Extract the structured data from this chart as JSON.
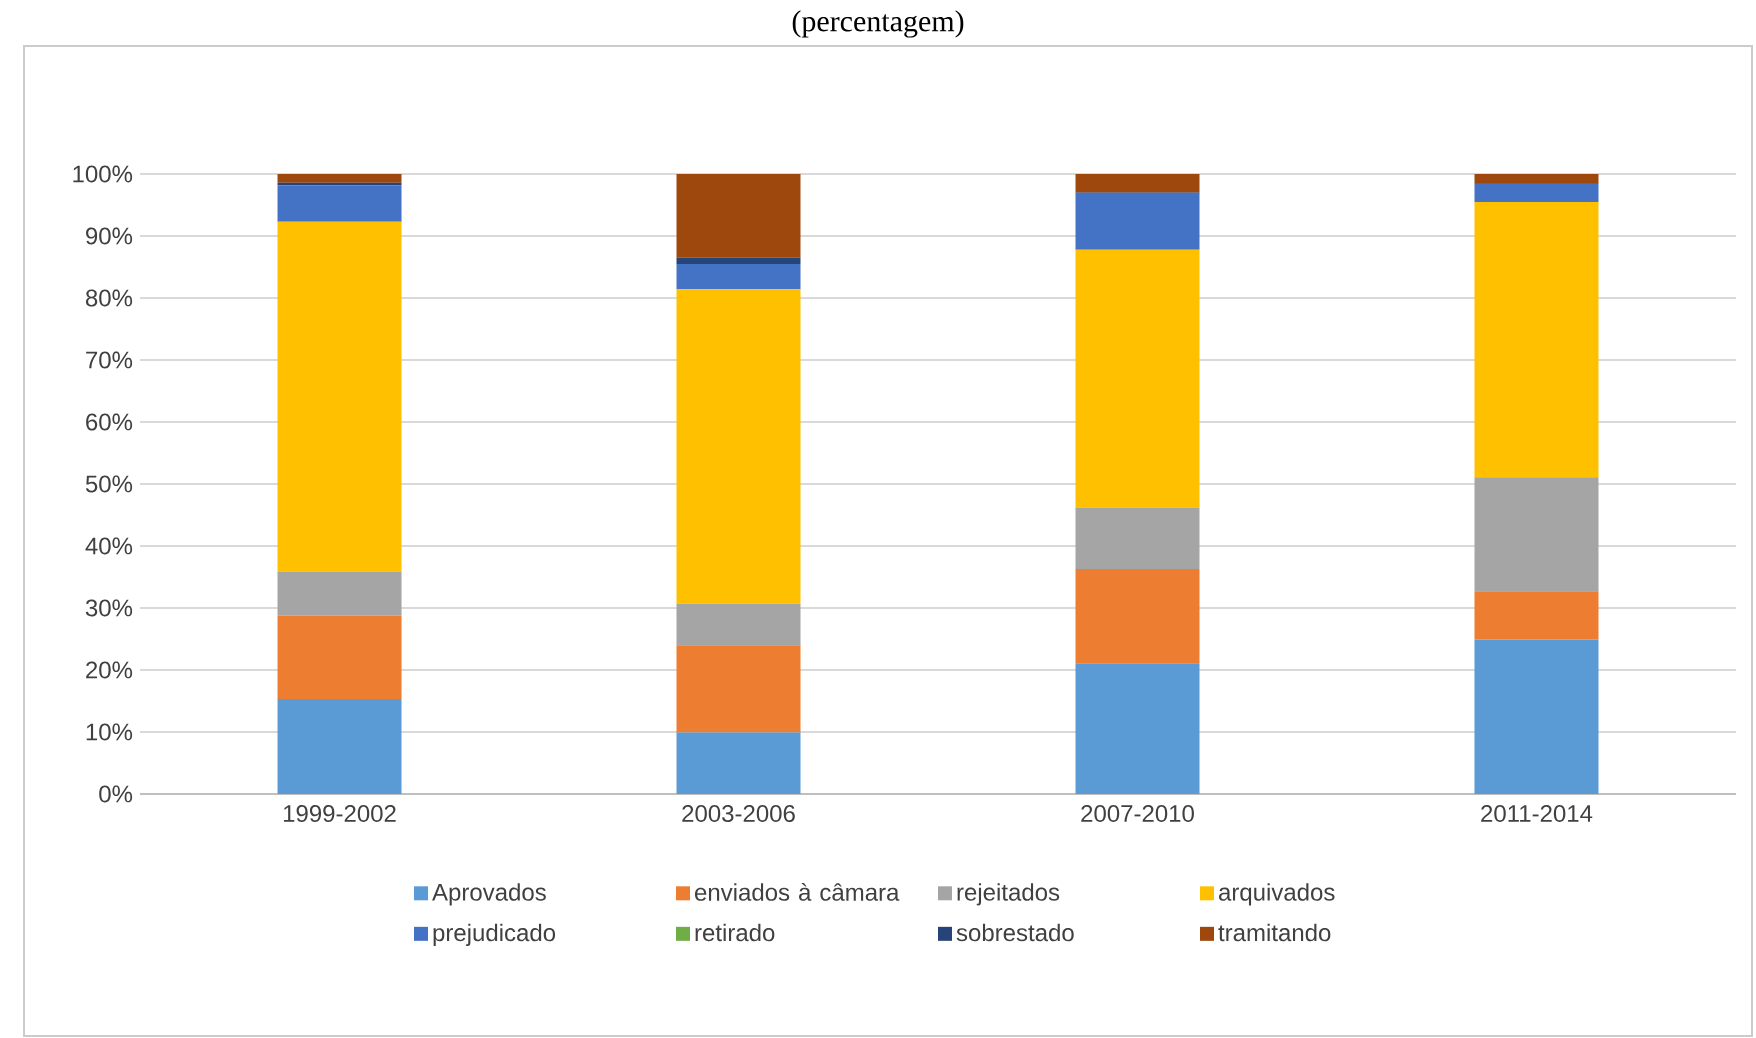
{
  "chart_data": {
    "type": "bar",
    "title": "(percentagem)",
    "stacked": true,
    "categories": [
      "1999-2002",
      "2003-2006",
      "2007-2010",
      "2011-2014"
    ],
    "ylim": [
      0,
      100
    ],
    "yticks": [
      {
        "value": 0,
        "label": "0%"
      },
      {
        "value": 10,
        "label": "10%"
      },
      {
        "value": 20,
        "label": "20%"
      },
      {
        "value": 30,
        "label": "30%"
      },
      {
        "value": 40,
        "label": "40%"
      },
      {
        "value": 50,
        "label": "50%"
      },
      {
        "value": 60,
        "label": "60%"
      },
      {
        "value": 70,
        "label": "70%"
      },
      {
        "value": 80,
        "label": "80%"
      },
      {
        "value": 90,
        "label": "90%"
      },
      {
        "value": 100,
        "label": "100%"
      }
    ],
    "grid": "y",
    "legend": "bottom",
    "series": [
      {
        "name": "Aprovados",
        "color": "#5b9bd5",
        "values": [
          15.3,
          9.9,
          21.1,
          24.9
        ]
      },
      {
        "name": "enviados à câmara",
        "color": "#ed7d31",
        "values": [
          13.5,
          14.1,
          15.2,
          7.8
        ]
      },
      {
        "name": "rejeitados",
        "color": "#a5a5a5",
        "values": [
          7.1,
          6.7,
          9.9,
          18.4
        ]
      },
      {
        "name": "arquivados",
        "color": "#ffc000",
        "values": [
          56.4,
          50.7,
          41.6,
          44.4
        ]
      },
      {
        "name": "prejudicado",
        "color": "#4472c4",
        "values": [
          5.9,
          4.1,
          9.0,
          2.9
        ]
      },
      {
        "name": "retirado",
        "color": "#70ad47",
        "values": [
          0,
          0,
          0,
          0
        ]
      },
      {
        "name": "sobrestado",
        "color": "#264478",
        "values": [
          0.4,
          1.0,
          0.2,
          0.1
        ]
      },
      {
        "name": "tramitando",
        "color": "#9e480e",
        "values": [
          1.4,
          13.5,
          3.0,
          1.5
        ]
      }
    ]
  }
}
